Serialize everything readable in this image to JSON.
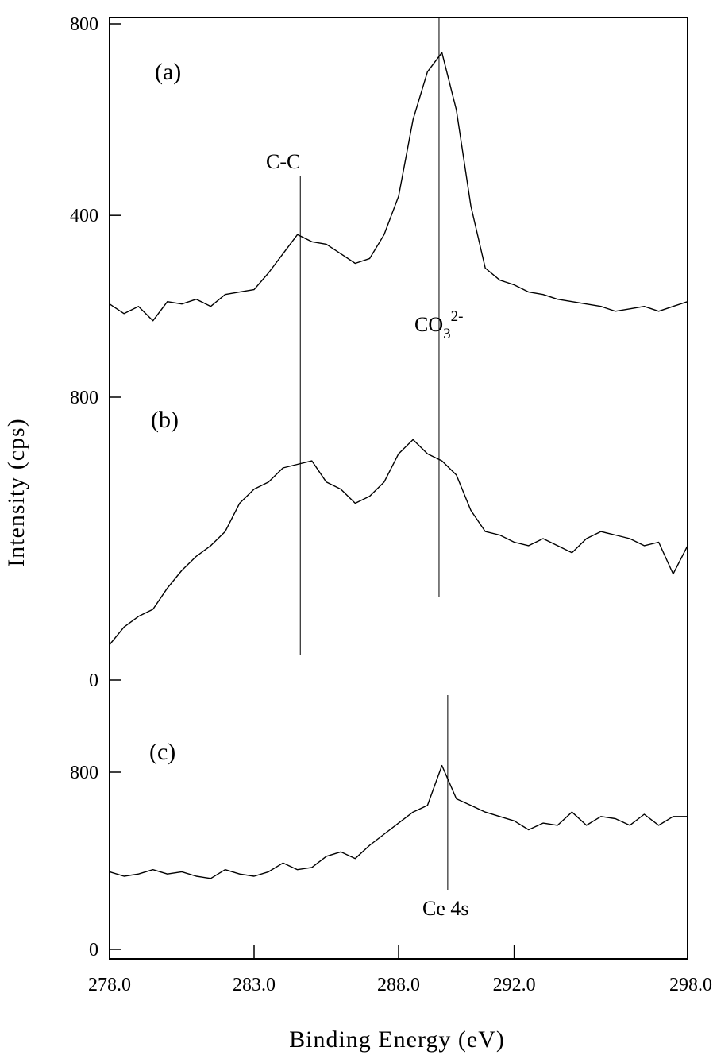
{
  "chart_data": {
    "type": "line",
    "xlabel": "Binding Energy (eV)",
    "ylabel": "Intensity (cps)",
    "xlim": [
      278.0,
      298.0
    ],
    "x_ticks": [
      "278.0",
      "283.0",
      "288.0",
      "292.0",
      "298.0"
    ],
    "x_tick_values": [
      278.0,
      283.0,
      288.0,
      292.0,
      298.0
    ],
    "grid": false,
    "panels": [
      {
        "label": "(a)",
        "y_ticks": [
          "800",
          "400"
        ],
        "y_tick_values": [
          800,
          400
        ],
        "ylim": [
          120,
          800
        ],
        "series": [
          {
            "x": [
              278.0,
              278.5,
              279.0,
              279.5,
              280.0,
              280.5,
              281.0,
              281.5,
              282.0,
              282.5,
              283.0,
              283.5,
              284.0,
              284.5,
              285.0,
              285.5,
              286.0,
              286.5,
              287.0,
              287.5,
              288.0,
              288.5,
              289.0,
              289.5,
              290.0,
              290.5,
              291.0,
              291.5,
              292.0,
              292.5,
              293.0,
              293.5,
              294.0,
              294.5,
              295.0,
              295.5,
              296.0,
              296.5,
              297.0,
              297.5,
              298.0
            ],
            "values": [
              215,
              195,
              210,
              180,
              220,
              215,
              225,
              210,
              235,
              240,
              245,
              280,
              320,
              360,
              345,
              340,
              320,
              300,
              310,
              360,
              440,
              600,
              700,
              740,
              620,
              420,
              290,
              265,
              255,
              240,
              235,
              225,
              220,
              215,
              210,
              200,
              205,
              210,
              200,
              210,
              220
            ]
          }
        ]
      },
      {
        "label": "(b)",
        "y_ticks": [
          "800",
          "0"
        ],
        "y_tick_values": [
          800,
          0
        ],
        "ylim": [
          0,
          800
        ],
        "series": [
          {
            "x": [
              278.0,
              278.5,
              279.0,
              279.5,
              280.0,
              280.5,
              281.0,
              281.5,
              282.0,
              282.5,
              283.0,
              283.5,
              284.0,
              284.5,
              285.0,
              285.5,
              286.0,
              286.5,
              287.0,
              287.5,
              288.0,
              288.5,
              289.0,
              289.5,
              290.0,
              290.5,
              291.0,
              291.5,
              292.0,
              292.5,
              293.0,
              293.5,
              294.0,
              294.5,
              295.0,
              295.5,
              296.0,
              296.5,
              297.0,
              297.5,
              298.0
            ],
            "values": [
              100,
              150,
              180,
              200,
              260,
              310,
              350,
              380,
              420,
              500,
              540,
              560,
              600,
              610,
              620,
              560,
              540,
              500,
              520,
              560,
              640,
              680,
              640,
              620,
              580,
              480,
              420,
              410,
              390,
              380,
              400,
              380,
              360,
              400,
              420,
              410,
              400,
              380,
              390,
              300,
              380
            ]
          }
        ]
      },
      {
        "label": "(c)",
        "y_ticks": [
          "800",
          "0"
        ],
        "y_tick_values": [
          800,
          0
        ],
        "ylim": [
          0,
          800
        ],
        "series": [
          {
            "x": [
              278.0,
              278.5,
              279.0,
              279.5,
              280.0,
              280.5,
              281.0,
              281.5,
              282.0,
              282.5,
              283.0,
              283.5,
              284.0,
              284.5,
              285.0,
              285.5,
              286.0,
              286.5,
              287.0,
              287.5,
              288.0,
              288.5,
              289.0,
              289.5,
              290.0,
              290.5,
              291.0,
              291.5,
              292.0,
              292.5,
              293.0,
              293.5,
              294.0,
              294.5,
              295.0,
              295.5,
              296.0,
              296.5,
              297.0,
              297.5,
              298.0
            ],
            "values": [
              350,
              330,
              340,
              360,
              340,
              350,
              330,
              320,
              360,
              340,
              330,
              350,
              390,
              360,
              370,
              420,
              440,
              410,
              470,
              520,
              570,
              620,
              650,
              830,
              680,
              650,
              620,
              600,
              580,
              540,
              570,
              560,
              620,
              560,
              600,
              590,
              560,
              610,
              560,
              600,
              600
            ]
          }
        ]
      }
    ],
    "annotations": {
      "cc_label": "C-C",
      "co3_base": "CO",
      "co3_sub": "3",
      "co3_sup": "2-",
      "ce_label": "Ce 4s"
    }
  }
}
